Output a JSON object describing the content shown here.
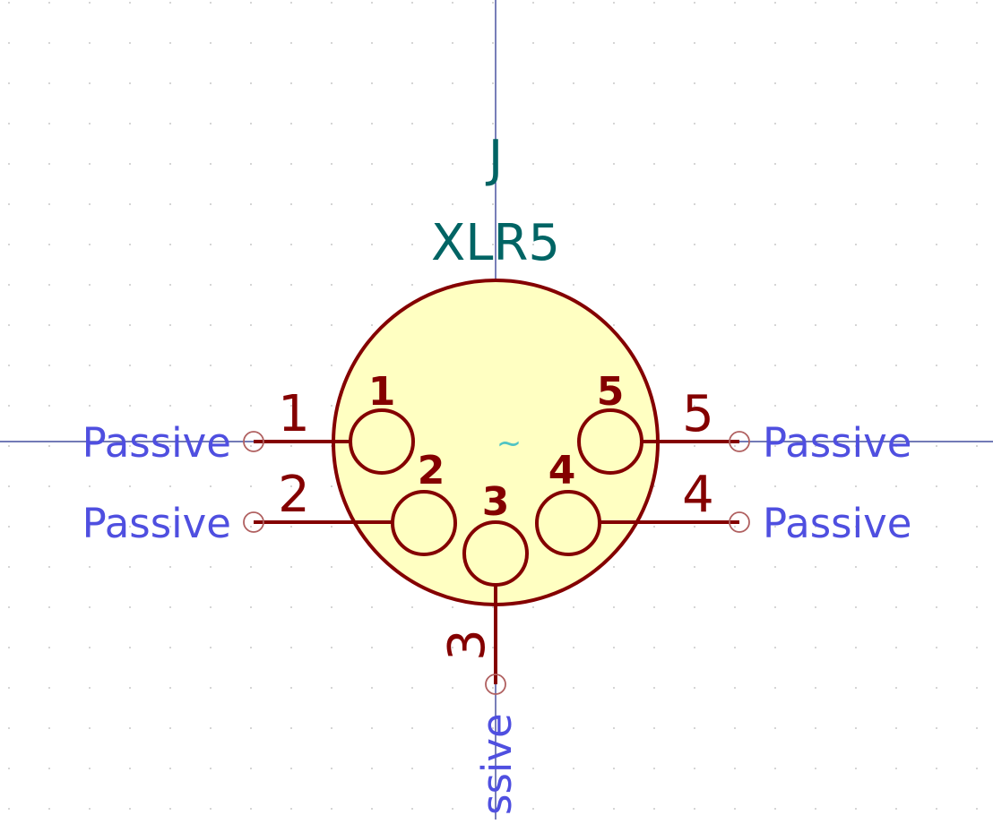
{
  "symbol": {
    "reference": "J",
    "value": "XLR5",
    "anchor_mark": "~"
  },
  "pins": [
    {
      "number": "1",
      "type": "Passive"
    },
    {
      "number": "2",
      "type": "Passive"
    },
    {
      "number": "3",
      "type": "Passive",
      "visible_type_text": "ssive"
    },
    {
      "number": "4",
      "type": "Passive"
    },
    {
      "number": "5",
      "type": "Passive"
    }
  ],
  "colors": {
    "background": "#ffffff",
    "grid_dot": "#c8c8c8",
    "crosshair": "#1f2a8a",
    "body_fill": "#ffffc2",
    "outline": "#840000",
    "field_text": "#006464",
    "pin_type_text": "#4f4fe0",
    "anchor_mark": "#4fc4c4"
  }
}
